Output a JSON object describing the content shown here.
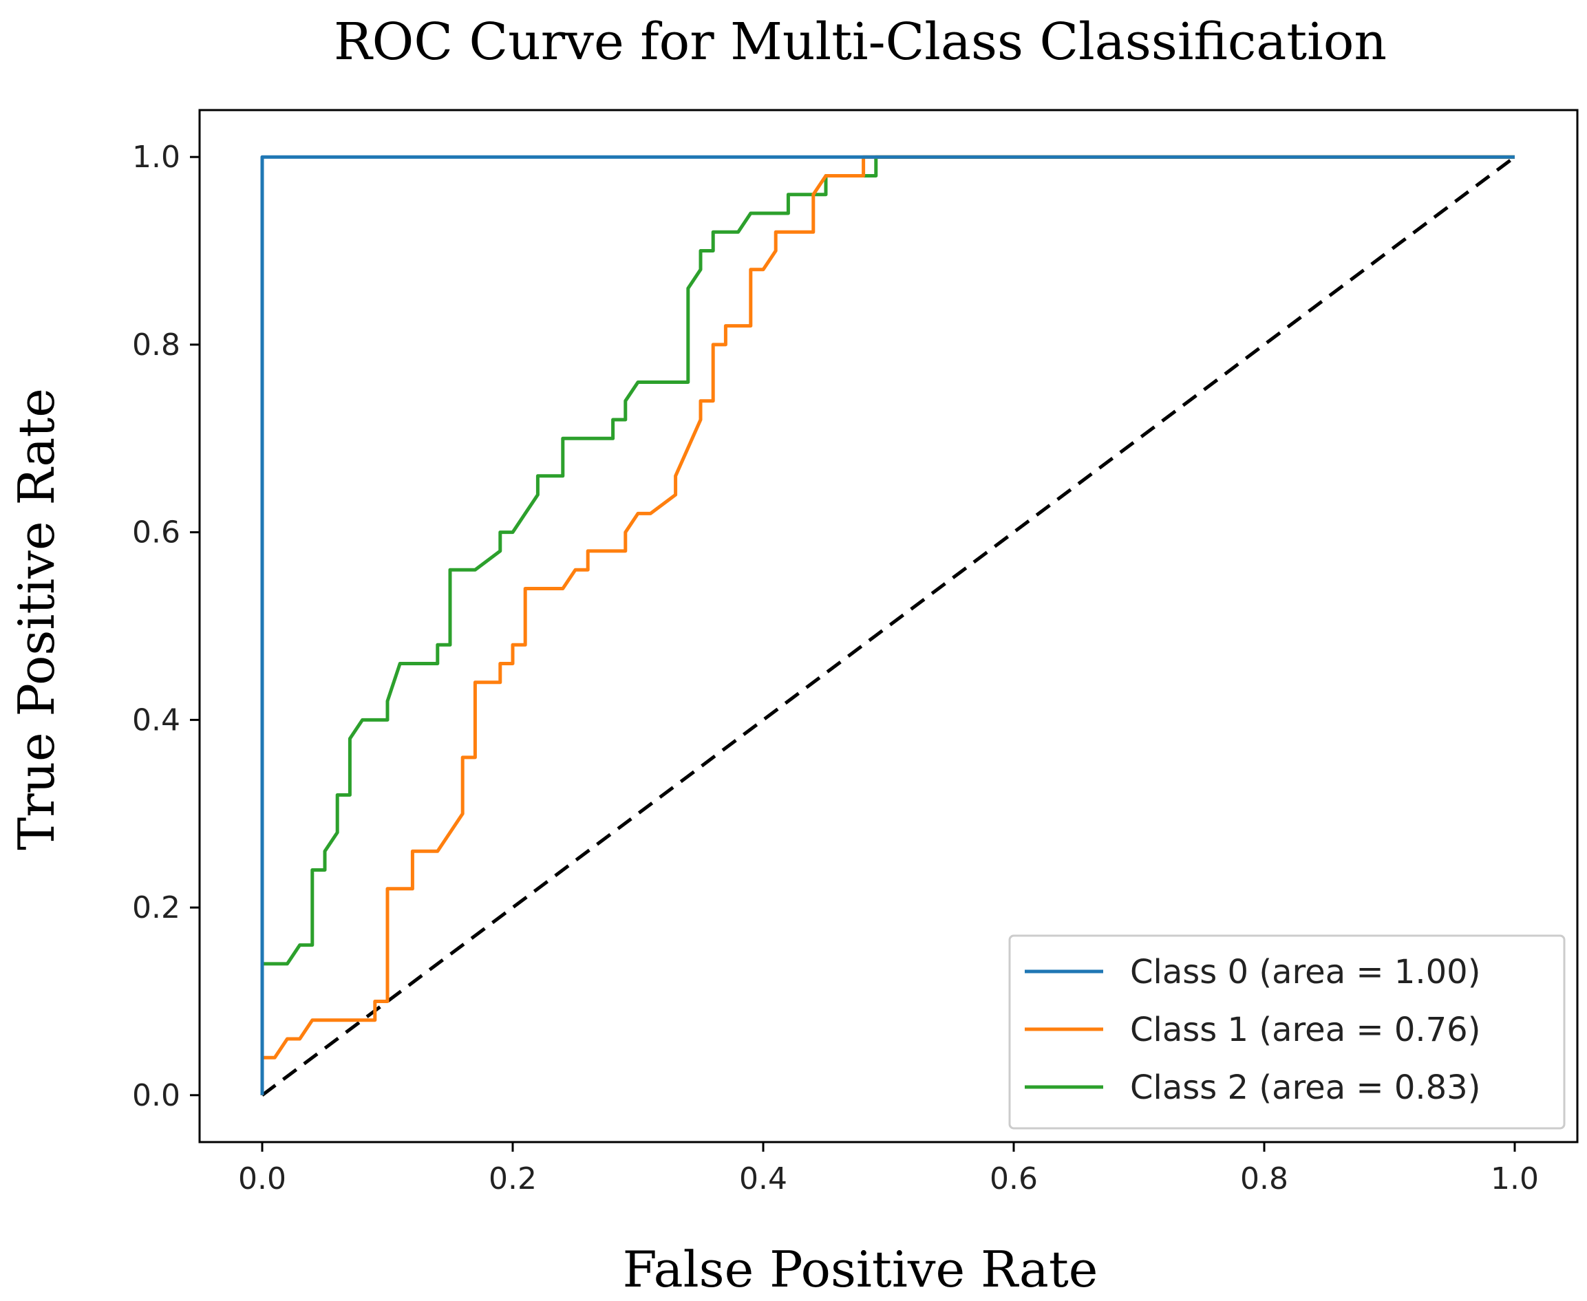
{
  "chart_data": {
    "type": "line",
    "title": "ROC Curve for Multi-Class Classification",
    "xlabel": "False Positive Rate",
    "ylabel": "True Positive Rate",
    "xlim": [
      -0.05,
      1.05
    ],
    "ylim": [
      -0.05,
      1.05
    ],
    "grid": false,
    "legend_position": "bottom-right",
    "xticks": [
      0.0,
      0.2,
      0.4,
      0.6,
      0.8,
      1.0
    ],
    "yticks": [
      0.0,
      0.2,
      0.4,
      0.6,
      0.8,
      1.0
    ],
    "xtick_labels": [
      "0.0",
      "0.2",
      "0.4",
      "0.6",
      "0.8",
      "1.0"
    ],
    "ytick_labels": [
      "0.0",
      "0.2",
      "0.4",
      "0.6",
      "0.8",
      "1.0"
    ],
    "series": [
      {
        "name": "Class 0 (area = 1.00)",
        "color": "#1f77b4",
        "x": [
          0.0,
          0.0,
          0.0,
          1.0
        ],
        "y": [
          0.0,
          0.0,
          1.0,
          1.0
        ]
      },
      {
        "name": "Class 1 (area = 0.76)",
        "color": "#ff7f0e",
        "x": [
          0.0,
          0.0,
          0.01,
          0.02,
          0.03,
          0.04,
          0.05,
          0.09,
          0.09,
          0.1,
          0.1,
          0.12,
          0.12,
          0.14,
          0.16,
          0.16,
          0.17,
          0.17,
          0.19,
          0.19,
          0.2,
          0.2,
          0.21,
          0.21,
          0.24,
          0.25,
          0.26,
          0.26,
          0.29,
          0.29,
          0.3,
          0.31,
          0.33,
          0.33,
          0.35,
          0.35,
          0.36,
          0.36,
          0.37,
          0.37,
          0.39,
          0.39,
          0.4,
          0.41,
          0.41,
          0.43,
          0.44,
          0.44,
          0.45,
          0.47,
          0.47,
          0.48,
          0.48,
          1.0
        ],
        "y": [
          0.0,
          0.04,
          0.04,
          0.06,
          0.06,
          0.08,
          0.08,
          0.08,
          0.1,
          0.1,
          0.22,
          0.22,
          0.26,
          0.26,
          0.3,
          0.36,
          0.36,
          0.44,
          0.44,
          0.46,
          0.46,
          0.48,
          0.48,
          0.54,
          0.54,
          0.56,
          0.56,
          0.58,
          0.58,
          0.6,
          0.62,
          0.62,
          0.64,
          0.66,
          0.72,
          0.74,
          0.74,
          0.8,
          0.8,
          0.82,
          0.82,
          0.88,
          0.88,
          0.9,
          0.92,
          0.92,
          0.92,
          0.96,
          0.98,
          0.98,
          0.98,
          0.98,
          1.0,
          1.0
        ]
      },
      {
        "name": "Class 2 (area = 0.83)",
        "color": "#2ca02c",
        "x": [
          0.0,
          0.0,
          0.02,
          0.03,
          0.04,
          0.04,
          0.05,
          0.05,
          0.06,
          0.06,
          0.07,
          0.07,
          0.08,
          0.1,
          0.1,
          0.11,
          0.14,
          0.14,
          0.15,
          0.15,
          0.17,
          0.19,
          0.19,
          0.2,
          0.22,
          0.22,
          0.24,
          0.24,
          0.28,
          0.28,
          0.29,
          0.29,
          0.3,
          0.34,
          0.34,
          0.35,
          0.35,
          0.36,
          0.36,
          0.38,
          0.39,
          0.4,
          0.42,
          0.42,
          0.44,
          0.45,
          0.45,
          0.49,
          0.49,
          1.0
        ],
        "y": [
          0.0,
          0.14,
          0.14,
          0.16,
          0.16,
          0.24,
          0.24,
          0.26,
          0.28,
          0.32,
          0.32,
          0.38,
          0.4,
          0.4,
          0.42,
          0.46,
          0.46,
          0.48,
          0.48,
          0.56,
          0.56,
          0.58,
          0.6,
          0.6,
          0.64,
          0.66,
          0.66,
          0.7,
          0.7,
          0.72,
          0.72,
          0.74,
          0.76,
          0.76,
          0.86,
          0.88,
          0.9,
          0.9,
          0.92,
          0.92,
          0.94,
          0.94,
          0.94,
          0.96,
          0.96,
          0.96,
          0.98,
          0.98,
          1.0,
          1.0
        ]
      }
    ],
    "reference_line": {
      "color": "#000000",
      "style": "dashed",
      "x": [
        0.0,
        1.0
      ],
      "y": [
        0.0,
        1.0
      ]
    }
  }
}
